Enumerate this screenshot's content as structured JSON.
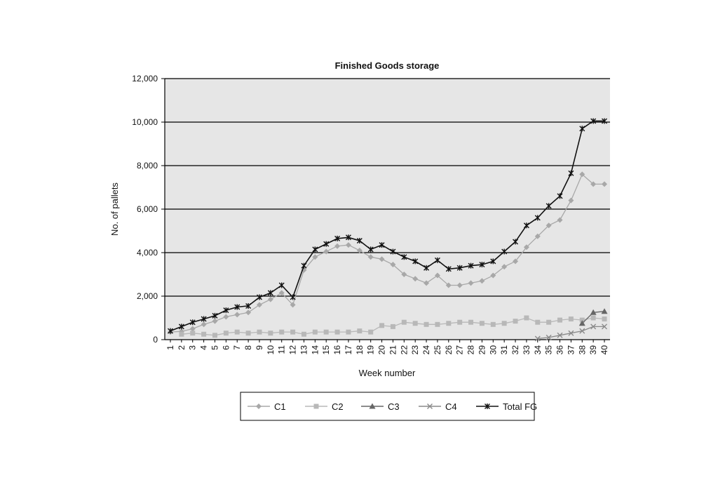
{
  "chart_data": {
    "type": "line",
    "title": "Finished Goods storage",
    "xlabel": "Week number",
    "ylabel": "No. of pallets",
    "ylim": [
      0,
      12000
    ],
    "yticks": [
      "0",
      "2,000",
      "4,000",
      "6,000",
      "8,000",
      "10,000",
      "12,000"
    ],
    "ytick_values": [
      0,
      2000,
      4000,
      6000,
      8000,
      10000,
      12000
    ],
    "x": [
      "1",
      "2",
      "3",
      "4",
      "5",
      "6",
      "7",
      "8",
      "9",
      "10",
      "11",
      "12",
      "13",
      "14",
      "15",
      "16",
      "17",
      "18",
      "19",
      "20",
      "21",
      "22",
      "23",
      "24",
      "25",
      "26",
      "27",
      "28",
      "29",
      "30",
      "31",
      "32",
      "33",
      "34",
      "35",
      "36",
      "37",
      "38",
      "39",
      "40"
    ],
    "grid": "horizontal",
    "legend_position": "bottom",
    "series": [
      {
        "name": "C1",
        "marker": "diamond",
        "color": "#a8a8a8",
        "values": [
          350,
          380,
          500,
          700,
          850,
          1050,
          1150,
          1250,
          1600,
          1850,
          2150,
          1600,
          3200,
          3800,
          4050,
          4300,
          4350,
          4100,
          3800,
          3700,
          3450,
          3000,
          2800,
          2600,
          2950,
          2500,
          2500,
          2600,
          2700,
          2950,
          3350,
          3600,
          4250,
          4750,
          5250,
          5500,
          6400,
          7600,
          7150,
          7150
        ]
      },
      {
        "name": "C2",
        "marker": "square",
        "color": "#b8b8b8",
        "values": [
          null,
          250,
          300,
          250,
          200,
          300,
          350,
          300,
          350,
          300,
          350,
          350,
          250,
          350,
          350,
          350,
          350,
          400,
          350,
          650,
          600,
          800,
          750,
          700,
          700,
          750,
          800,
          800,
          750,
          700,
          750,
          850,
          1000,
          800,
          800,
          900,
          950,
          900,
          1000,
          950
        ]
      },
      {
        "name": "C3",
        "marker": "triangle",
        "color": "#666666",
        "values": [
          null,
          null,
          null,
          null,
          null,
          null,
          null,
          null,
          null,
          null,
          null,
          null,
          null,
          null,
          null,
          null,
          null,
          null,
          null,
          null,
          null,
          null,
          null,
          null,
          null,
          null,
          null,
          null,
          null,
          null,
          null,
          null,
          null,
          null,
          null,
          null,
          null,
          750,
          1250,
          1300
        ]
      },
      {
        "name": "C4",
        "marker": "x",
        "color": "#8a8a8a",
        "values": [
          null,
          null,
          null,
          null,
          null,
          null,
          null,
          null,
          null,
          null,
          null,
          null,
          null,
          null,
          null,
          null,
          null,
          null,
          null,
          null,
          null,
          null,
          null,
          null,
          null,
          null,
          null,
          null,
          null,
          null,
          null,
          null,
          null,
          50,
          100,
          200,
          300,
          400,
          600,
          600
        ]
      },
      {
        "name": "Total FG",
        "marker": "star",
        "color": "#111111",
        "values": [
          400,
          600,
          800,
          950,
          1100,
          1350,
          1500,
          1550,
          1950,
          2150,
          2500,
          1950,
          3400,
          4150,
          4400,
          4650,
          4700,
          4550,
          4150,
          4350,
          4050,
          3800,
          3600,
          3300,
          3650,
          3250,
          3300,
          3400,
          3450,
          3600,
          4050,
          4500,
          5250,
          5600,
          6150,
          6600,
          7650,
          9700,
          10050,
          10050
        ]
      }
    ]
  },
  "colors": {
    "plot_background": "#e6e6e6",
    "gridline": "#000000",
    "axis": "#000000"
  }
}
